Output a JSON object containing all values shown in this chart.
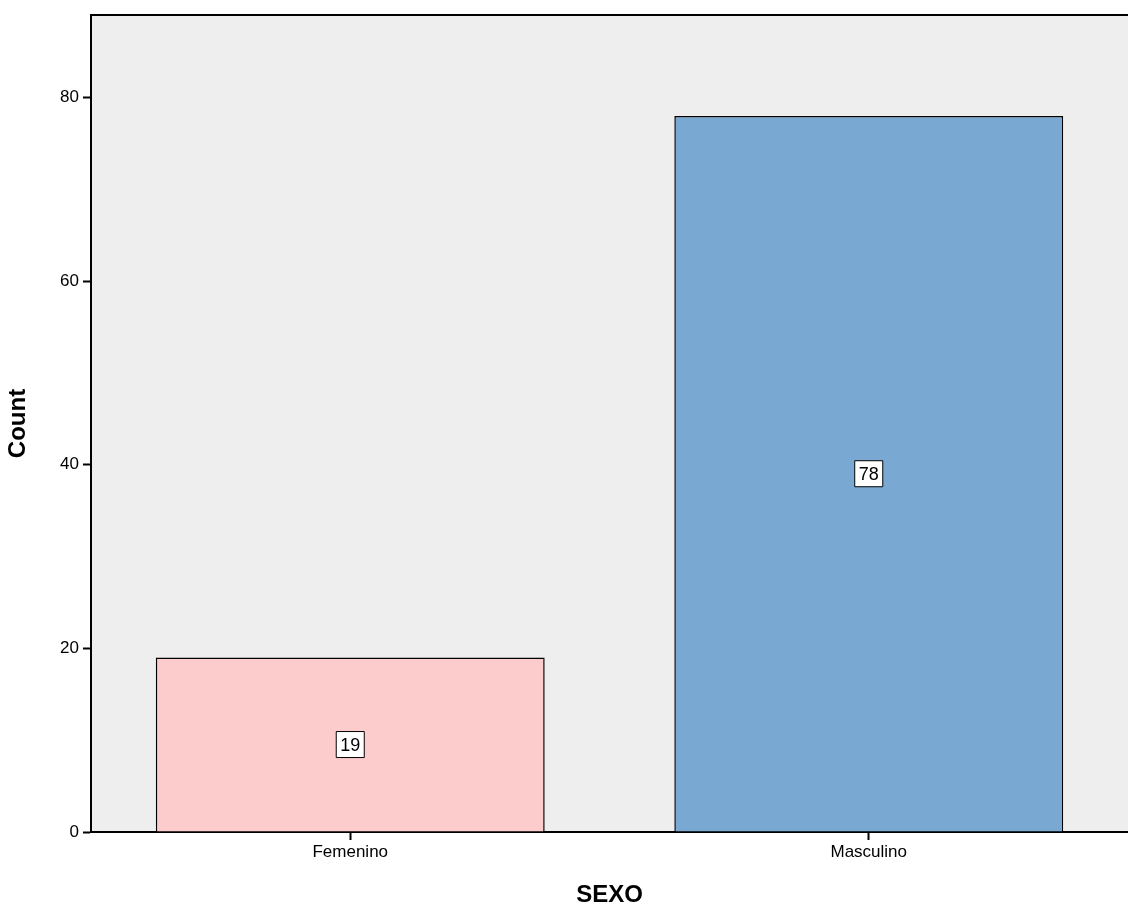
{
  "chart_data": {
    "type": "bar",
    "xlabel": "SEXO",
    "ylabel": "Count",
    "categories": [
      "Femenino",
      "Masculino"
    ],
    "values": [
      19,
      78
    ],
    "colors": [
      "#fccbcb",
      "#79a9d3"
    ],
    "ylim": [
      0,
      89
    ],
    "yticks": [
      0,
      20,
      40,
      60,
      80
    ],
    "grid": false,
    "legend": false,
    "data_labels": true
  }
}
